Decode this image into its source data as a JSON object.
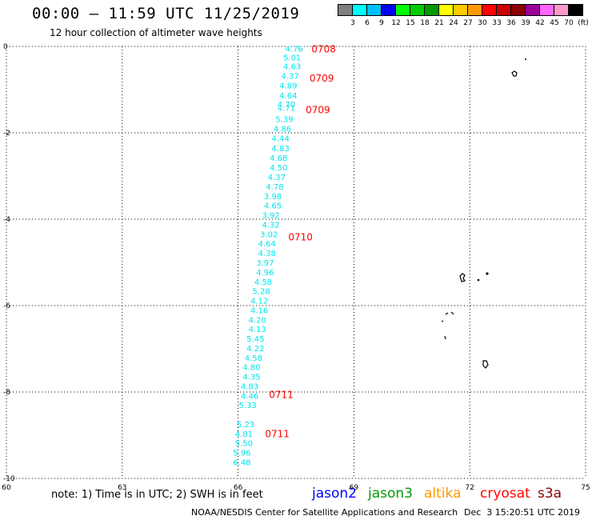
{
  "header": {
    "title": "00:00 – 11:59 UTC 11/25/2019",
    "subtitle": "12 hour collection of altimeter wave heights"
  },
  "colorbar": {
    "colors": [
      "#7f7f7f",
      "#00ffff",
      "#00bfff",
      "#0000ff",
      "#00ff00",
      "#00cc00",
      "#009900",
      "#ffff00",
      "#ffcc00",
      "#ff9900",
      "#ff0000",
      "#cc0000",
      "#8b0000",
      "#990099",
      "#ff66ff",
      "#ff99cc",
      "#000000"
    ],
    "labels": [
      "3",
      "6",
      "9",
      "12",
      "15",
      "18",
      "21",
      "24",
      "27",
      "30",
      "33",
      "36",
      "39",
      "42",
      "45",
      "70",
      "(ft)"
    ]
  },
  "chart_data": {
    "type": "scatter",
    "xlim": [
      60,
      75
    ],
    "ylim": [
      -10,
      0
    ],
    "x_ticks": [
      "60",
      "63",
      "66",
      "69",
      "72",
      "75"
    ],
    "y_ticks": [
      "0",
      "-2",
      "-4",
      "-6",
      "-8",
      "-10"
    ],
    "wave_heights": [
      {
        "lon": 67.45,
        "lat": -0.05,
        "swh": "4.76"
      },
      {
        "lon": 67.4,
        "lat": -0.25,
        "swh": "5.01"
      },
      {
        "lon": 67.4,
        "lat": -0.45,
        "swh": "4.63"
      },
      {
        "lon": 67.35,
        "lat": -0.68,
        "swh": "4.37"
      },
      {
        "lon": 67.3,
        "lat": -0.9,
        "swh": "4.89"
      },
      {
        "lon": 67.3,
        "lat": -1.13,
        "swh": "4.64"
      },
      {
        "lon": 67.25,
        "lat": -1.33,
        "swh": "4.70"
      },
      {
        "lon": 67.25,
        "lat": -1.42,
        "swh": "4.71"
      },
      {
        "lon": 67.2,
        "lat": -1.68,
        "swh": "5.39"
      },
      {
        "lon": 67.15,
        "lat": -1.9,
        "swh": "4.86"
      },
      {
        "lon": 67.1,
        "lat": -2.12,
        "swh": "4.44"
      },
      {
        "lon": 67.1,
        "lat": -2.35,
        "swh": "4.83"
      },
      {
        "lon": 67.05,
        "lat": -2.57,
        "swh": "4.68"
      },
      {
        "lon": 67.05,
        "lat": -2.8,
        "swh": "4.50"
      },
      {
        "lon": 67.0,
        "lat": -3.02,
        "swh": "4.37"
      },
      {
        "lon": 66.95,
        "lat": -3.24,
        "swh": "4.78"
      },
      {
        "lon": 66.9,
        "lat": -3.46,
        "swh": "3.98"
      },
      {
        "lon": 66.9,
        "lat": -3.68,
        "swh": "4.65"
      },
      {
        "lon": 66.85,
        "lat": -3.9,
        "swh": "3.92"
      },
      {
        "lon": 66.85,
        "lat": -4.12,
        "swh": "4.32"
      },
      {
        "lon": 66.8,
        "lat": -4.34,
        "swh": "3.02"
      },
      {
        "lon": 66.75,
        "lat": -4.56,
        "swh": "4.64"
      },
      {
        "lon": 66.75,
        "lat": -4.78,
        "swh": "4.38"
      },
      {
        "lon": 66.7,
        "lat": -5.0,
        "swh": "3.97"
      },
      {
        "lon": 66.7,
        "lat": -5.22,
        "swh": "4.96"
      },
      {
        "lon": 66.65,
        "lat": -5.44,
        "swh": "4.58"
      },
      {
        "lon": 66.6,
        "lat": -5.66,
        "swh": "5.28"
      },
      {
        "lon": 66.55,
        "lat": -5.88,
        "swh": "4.12"
      },
      {
        "lon": 66.55,
        "lat": -6.1,
        "swh": "4.16"
      },
      {
        "lon": 66.5,
        "lat": -6.32,
        "swh": "4.20"
      },
      {
        "lon": 66.5,
        "lat": -6.54,
        "swh": "4.13"
      },
      {
        "lon": 66.45,
        "lat": -6.76,
        "swh": "5.45"
      },
      {
        "lon": 66.45,
        "lat": -6.98,
        "swh": "4.22"
      },
      {
        "lon": 66.4,
        "lat": -7.2,
        "swh": "4.58"
      },
      {
        "lon": 66.35,
        "lat": -7.42,
        "swh": "4.80"
      },
      {
        "lon": 66.35,
        "lat": -7.64,
        "swh": "4.35"
      },
      {
        "lon": 66.3,
        "lat": -7.86,
        "swh": "4.83"
      },
      {
        "lon": 66.3,
        "lat": -8.08,
        "swh": "4.46"
      },
      {
        "lon": 66.25,
        "lat": -8.3,
        "swh": "5.33"
      },
      {
        "lon": 66.2,
        "lat": -8.74,
        "swh": "5.23"
      },
      {
        "lon": 66.15,
        "lat": -8.96,
        "swh": "4.81"
      },
      {
        "lon": 66.15,
        "lat": -9.18,
        "swh": "5.50"
      },
      {
        "lon": 66.1,
        "lat": -9.4,
        "swh": "5.96"
      },
      {
        "lon": 66.1,
        "lat": -9.62,
        "swh": "6.48"
      }
    ],
    "time_labels": [
      {
        "lon": 67.9,
        "lat": -0.05,
        "time": "0708"
      },
      {
        "lon": 67.85,
        "lat": -0.72,
        "time": "0709"
      },
      {
        "lon": 67.75,
        "lat": -1.45,
        "time": "0709"
      },
      {
        "lon": 67.3,
        "lat": -4.4,
        "time": "0710"
      },
      {
        "lon": 66.8,
        "lat": -8.05,
        "time": "0711"
      },
      {
        "lon": 66.7,
        "lat": -8.95,
        "time": "0711"
      }
    ],
    "swh_color": "#00e5ee",
    "time_color": "#ff0000"
  },
  "footer": {
    "note": "note: 1) Time is in UTC; 2) SWH is in feet",
    "satellites": [
      {
        "name": "jason2",
        "color": "#0000ff"
      },
      {
        "name": "jason3",
        "color": "#009900"
      },
      {
        "name": "altika",
        "color": "#ff9900"
      },
      {
        "name": "cryosat",
        "color": "#ff0000"
      },
      {
        "name": "s3a",
        "color": "#8b0000"
      }
    ],
    "credit": "NOAA/NESDIS Center for Satellite Applications and Research",
    "timestamp": "Dec  3 15:20:51 UTC 2019"
  }
}
